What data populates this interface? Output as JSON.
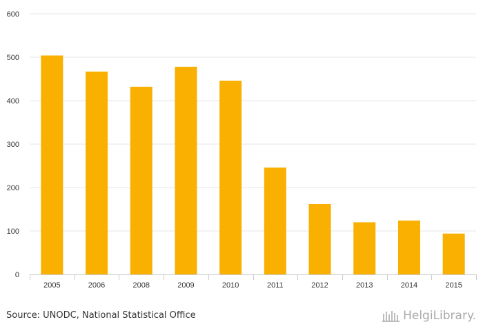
{
  "chart_data": {
    "type": "bar",
    "categories": [
      "2005",
      "2006",
      "2008",
      "2009",
      "2010",
      "2011",
      "2012",
      "2013",
      "2014",
      "2015"
    ],
    "values": [
      504,
      467,
      432,
      478,
      446,
      246,
      162,
      120,
      124,
      94
    ],
    "ylim": [
      0,
      600
    ],
    "yticks": [
      0,
      100,
      200,
      300,
      400,
      500,
      600
    ],
    "grid": true,
    "bar_color": "#f9b000",
    "title": "",
    "xlabel": "",
    "ylabel": ""
  },
  "footer": {
    "source": "Source: UNODC, National Statistical Office",
    "brand": "HelgiLibrary."
  }
}
